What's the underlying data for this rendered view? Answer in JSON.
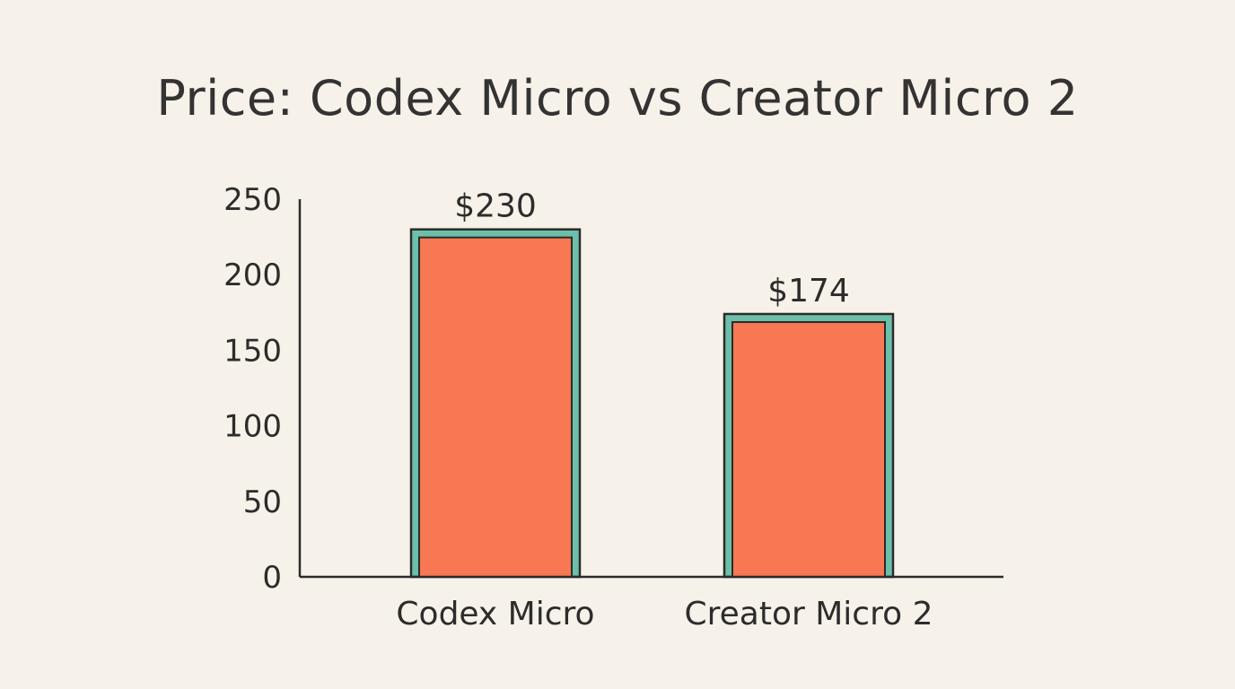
{
  "chart_data": {
    "type": "bar",
    "title": "Price: Codex Micro vs Creator Micro 2",
    "categories": [
      "Codex Micro",
      "Creator Micro 2"
    ],
    "values": [
      230,
      174
    ],
    "data_labels": [
      "$230",
      "$174"
    ],
    "yticks": [
      0,
      50,
      100,
      150,
      200,
      250
    ],
    "ylim": [
      0,
      250
    ],
    "xlabel": "",
    "ylabel": "",
    "grid": false,
    "colors": {
      "bar_fill": "#f77852",
      "bar_border": "#6cbfa8",
      "outline": "#2b2b2b",
      "axis": "#2b2b2b",
      "background": "#f6f2e9"
    }
  }
}
